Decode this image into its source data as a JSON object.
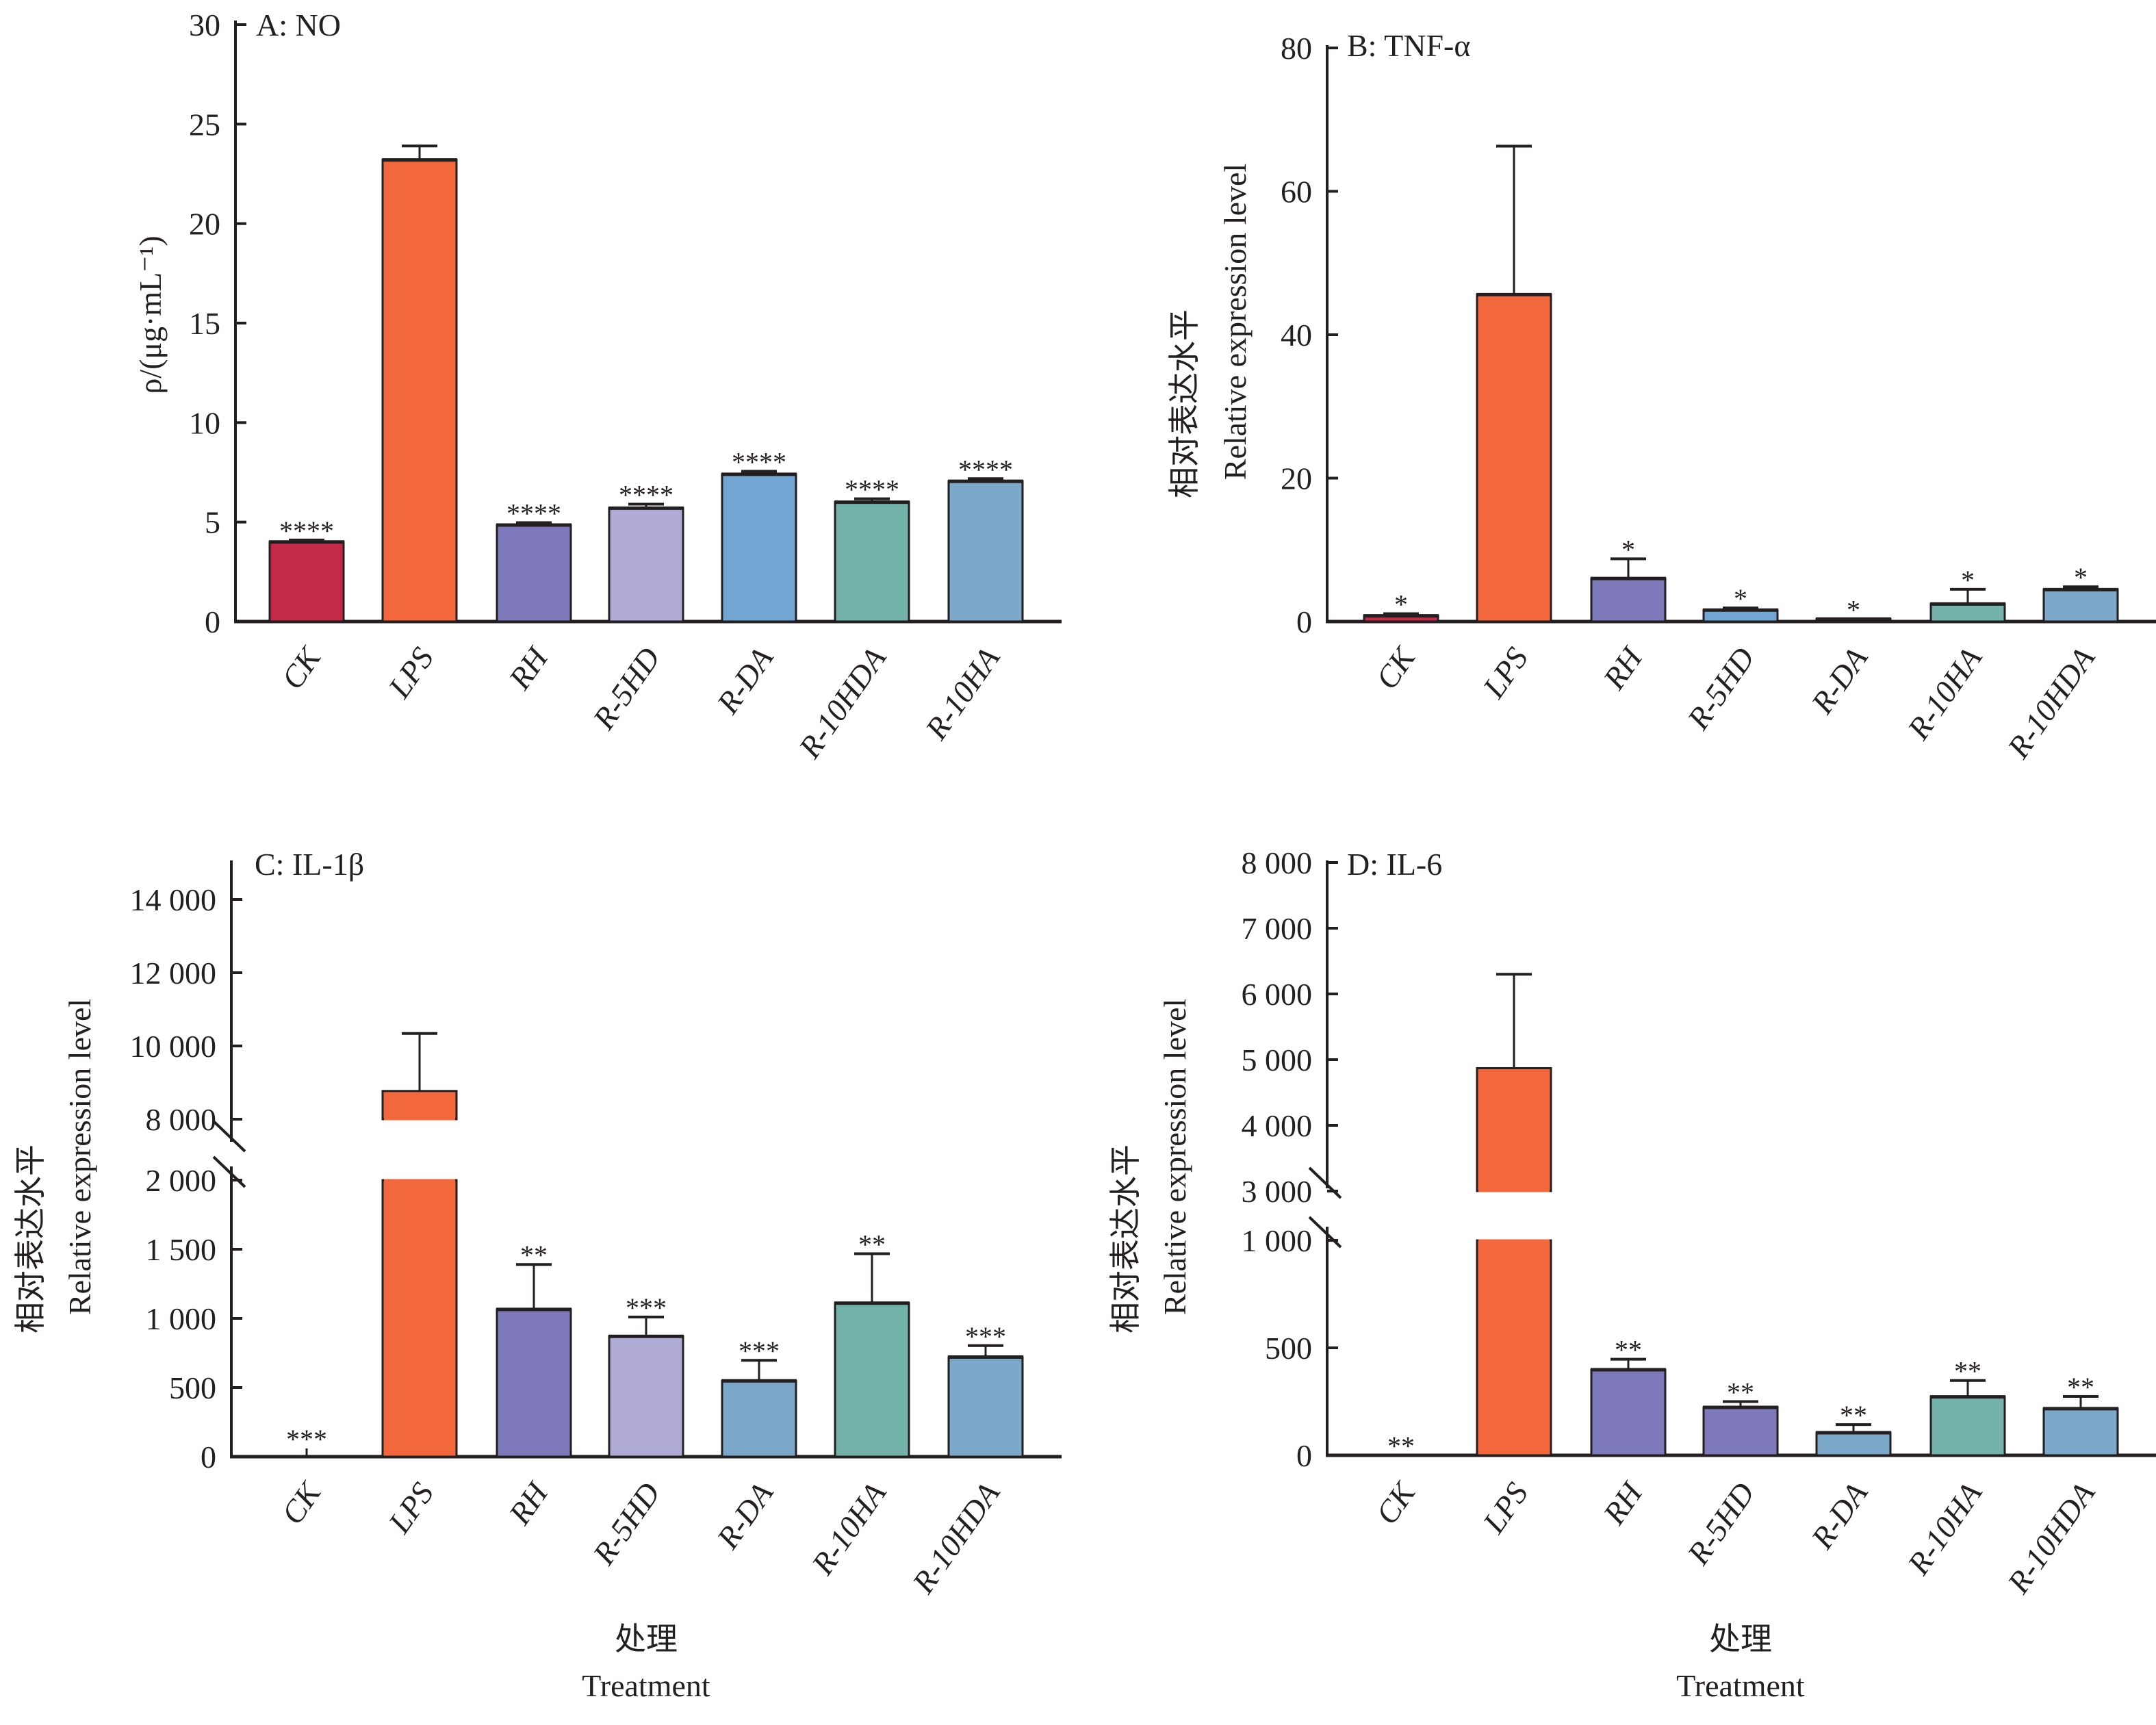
{
  "colors": {
    "axis": "#231f20",
    "CK": "#c42a47",
    "LPS": "#f2673c",
    "RH": "#7d79ba",
    "R-5HD_light": "#b0aad6",
    "R-DA_blue": "#73a5d4",
    "R-10HDA_teal": "#72b2a8",
    "steel_blue": "#7ba7c9"
  },
  "chart_data": [
    {
      "id": "A",
      "type": "bar",
      "title": "A: NO",
      "ylabel": "ρ/(μg·mL⁻¹)",
      "ylabel_cn": "",
      "xlabel": "",
      "xlabel_cn": "",
      "ylim": [
        0,
        30
      ],
      "yticks": [
        0,
        5,
        10,
        15,
        20,
        25,
        30
      ],
      "ytick_labels": [
        "0",
        "5",
        "10",
        "15",
        "20",
        "25",
        "30"
      ],
      "axis_break": null,
      "categories": [
        "CK",
        "LPS",
        "RH",
        "R-5HD",
        "R-DA",
        "R-10HDA",
        "R-10HA"
      ],
      "values": [
        4.0,
        23.2,
        4.85,
        5.7,
        7.4,
        6.0,
        7.05
      ],
      "error_upper": [
        4.1,
        23.9,
        4.97,
        5.9,
        7.55,
        6.17,
        7.18
      ],
      "significance": [
        "****",
        "",
        "****",
        "****",
        "****",
        "****",
        "****"
      ],
      "bar_colors": [
        "#c42a47",
        "#f2673c",
        "#7d79ba",
        "#b0aad6",
        "#73a5d4",
        "#72b2a8",
        "#7ba7c9"
      ]
    },
    {
      "id": "B",
      "type": "bar",
      "title": "B: TNF-α",
      "ylabel": "Relative expression level",
      "ylabel_cn": "相对表达水平",
      "xlabel": "",
      "xlabel_cn": "",
      "ylim": [
        0,
        80
      ],
      "yticks": [
        0,
        20,
        40,
        60,
        80
      ],
      "ytick_labels": [
        "0",
        "20",
        "40",
        "60",
        "80"
      ],
      "axis_break": null,
      "categories": [
        "CK",
        "LPS",
        "RH",
        "R-5HD",
        "R-DA",
        "R-10HA",
        "R-10HDA"
      ],
      "values": [
        0.8,
        45.6,
        6.0,
        1.6,
        0.35,
        2.45,
        4.45
      ],
      "error_upper": [
        1.1,
        66.3,
        8.75,
        1.9,
        0.35,
        4.5,
        4.85
      ],
      "significance": [
        "*",
        "",
        "*",
        "*",
        "*",
        "*",
        "*"
      ],
      "bar_colors": [
        "#c42a47",
        "#f2673c",
        "#7d79ba",
        "#73a5d4",
        "#231f20",
        "#72b2a8",
        "#7ba7c9"
      ]
    },
    {
      "id": "C",
      "type": "bar",
      "title": "C: IL-1β",
      "ylabel": "Relative expression level",
      "ylabel_cn": "相对表达水平",
      "xlabel": "Treatment",
      "xlabel_cn": "处理",
      "ylim": [
        0,
        14500
      ],
      "yticks_lower": [
        0,
        500,
        1000,
        1500,
        2000
      ],
      "ytick_labels_lower": [
        "0",
        "500",
        "1 000",
        "1 500",
        "2 000"
      ],
      "yticks_upper": [
        8000,
        10000,
        12000,
        14000
      ],
      "ytick_labels_upper": [
        "8 000",
        "10 000",
        "12 000",
        "14 000"
      ],
      "axis_break": {
        "lower_max": 2000,
        "upper_min": 7500
      },
      "categories": [
        "CK",
        "LPS",
        "RH",
        "R-5HD",
        "R-DA",
        "R-10HA",
        "R-10HDA"
      ],
      "values": [
        0,
        8770,
        1065,
        870,
        548,
        1110,
        720
      ],
      "error_upper": [
        60,
        10340,
        1390,
        1010,
        697,
        1468,
        803
      ],
      "significance": [
        "***",
        "",
        "**",
        "***",
        "***",
        "**",
        "***"
      ],
      "bar_colors": [
        "#c42a47",
        "#f2673c",
        "#7d79ba",
        "#b0aad6",
        "#7ba7c9",
        "#72b2a8",
        "#7ba7c9"
      ]
    },
    {
      "id": "D",
      "type": "bar",
      "title": "D: IL-6",
      "ylabel": "Relative expression level",
      "ylabel_cn": "相对表达水平",
      "xlabel": "Treatment",
      "xlabel_cn": "处理",
      "ylim": [
        0,
        8000
      ],
      "yticks_lower": [
        0,
        500,
        1000
      ],
      "ytick_labels_lower": [
        "0",
        "500",
        "1 000"
      ],
      "yticks_upper": [
        3000,
        4000,
        5000,
        6000,
        7000,
        8000
      ],
      "ytick_labels_upper": [
        "3 000",
        "4 000",
        "5 000",
        "6 000",
        "7 000",
        "8 000"
      ],
      "axis_break": {
        "lower_max": 1000,
        "upper_min": 3000
      },
      "categories": [
        "CK",
        "LPS",
        "RH",
        "R-5HD",
        "R-DA",
        "R-10HA",
        "R-10HDA"
      ],
      "values": [
        0,
        4870,
        398,
        223,
        105,
        272,
        217
      ],
      "error_upper": [
        0,
        6300,
        447,
        250,
        143,
        348,
        274
      ],
      "significance": [
        "**",
        "",
        "**",
        "**",
        "**",
        "**",
        "**"
      ],
      "bar_colors": [
        "#c42a47",
        "#f2673c",
        "#7d79ba",
        "#7d79ba",
        "#7ba7c9",
        "#72b2a8",
        "#7ba7c9"
      ]
    }
  ]
}
